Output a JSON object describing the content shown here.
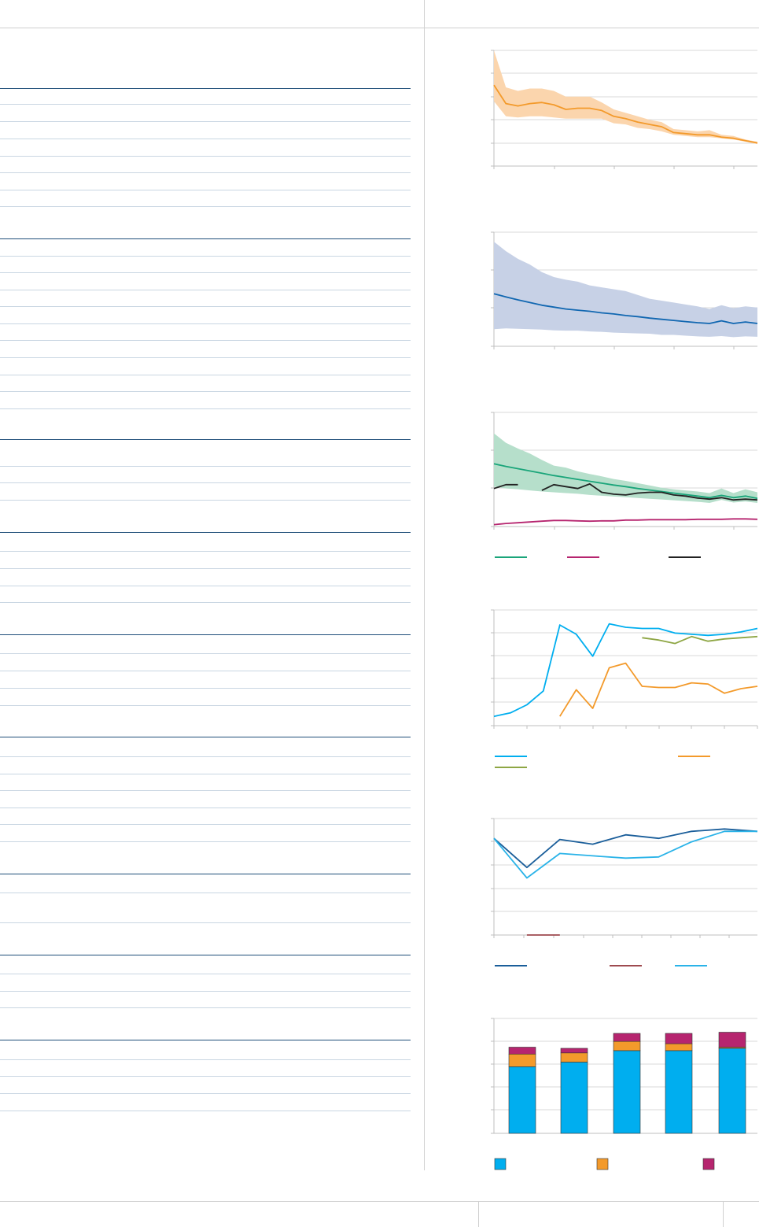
{
  "colors": {
    "header_rule": "#1f4e79",
    "row_rule": "#c9d6e2",
    "orange": "#f39a2b",
    "orange_band": "#fbd5ad",
    "blue": "#1167b1",
    "blue_band": "#c7d1e6",
    "green": "#1aa57a",
    "green_band": "#b6dfcb",
    "magenta": "#b6256f",
    "black": "#222222",
    "cyan": "#00aeef",
    "olive": "#8ea644",
    "darkblue": "#1a5e9a",
    "brown": "#9e4a4f",
    "lightblue": "#2ab3e8"
  },
  "chart_data": [
    {
      "type": "line",
      "title": "",
      "x": [
        0,
        1,
        2,
        3,
        4,
        5,
        6,
        7,
        8,
        9,
        10,
        11,
        12,
        13,
        14,
        15,
        16,
        17,
        18,
        19,
        20,
        21,
        22
      ],
      "ylim": [
        0,
        5
      ],
      "series": [
        {
          "values": [
            3.5,
            2.7,
            2.6,
            2.7,
            2.75,
            2.65,
            2.45,
            2.5,
            2.5,
            2.4,
            2.15,
            2.05,
            1.9,
            1.8,
            1.7,
            1.45,
            1.4,
            1.35,
            1.35,
            1.25,
            1.2,
            1.1,
            1.0
          ],
          "band_low": [
            2.8,
            2.15,
            2.1,
            2.15,
            2.15,
            2.1,
            2.05,
            2.05,
            2.05,
            2.05,
            1.85,
            1.8,
            1.65,
            1.6,
            1.5,
            1.35,
            1.3,
            1.25,
            1.25,
            1.2,
            1.15,
            1.05,
            0.95
          ],
          "band_high": [
            5.0,
            3.4,
            3.25,
            3.35,
            3.35,
            3.25,
            3.0,
            3.0,
            3.0,
            2.75,
            2.45,
            2.3,
            2.15,
            2.0,
            1.9,
            1.6,
            1.55,
            1.5,
            1.55,
            1.35,
            1.3,
            1.15,
            1.05
          ]
        }
      ]
    },
    {
      "type": "line",
      "title": "",
      "x": [
        0,
        1,
        2,
        3,
        4,
        5,
        6,
        7,
        8,
        9,
        10,
        11,
        12,
        13,
        14,
        15,
        16,
        17,
        18,
        19,
        20,
        21,
        22
      ],
      "ylim": [
        0,
        3
      ],
      "series": [
        {
          "values": [
            1.38,
            1.3,
            1.22,
            1.15,
            1.08,
            1.03,
            0.98,
            0.95,
            0.92,
            0.88,
            0.85,
            0.81,
            0.78,
            0.74,
            0.71,
            0.68,
            0.65,
            0.62,
            0.6,
            0.67,
            0.6,
            0.64,
            0.6
          ],
          "band_low": [
            0.45,
            0.47,
            0.46,
            0.45,
            0.44,
            0.42,
            0.41,
            0.41,
            0.39,
            0.38,
            0.36,
            0.35,
            0.34,
            0.33,
            0.3,
            0.3,
            0.28,
            0.26,
            0.25,
            0.27,
            0.24,
            0.26,
            0.25
          ],
          "band_high": [
            2.75,
            2.5,
            2.3,
            2.15,
            1.95,
            1.82,
            1.75,
            1.7,
            1.6,
            1.55,
            1.5,
            1.45,
            1.35,
            1.25,
            1.2,
            1.15,
            1.1,
            1.05,
            0.98,
            1.08,
            1.0,
            1.05,
            1.02
          ]
        }
      ]
    },
    {
      "type": "line",
      "title": "",
      "x": [
        0,
        1,
        2,
        3,
        4,
        5,
        6,
        7,
        8,
        9,
        10,
        11,
        12,
        13,
        14,
        15,
        16,
        17,
        18,
        19,
        20,
        21,
        22
      ],
      "ylim": [
        0,
        3
      ],
      "series": [
        {
          "color_key": "green",
          "values": [
            1.65,
            1.58,
            1.52,
            1.46,
            1.4,
            1.34,
            1.29,
            1.24,
            1.19,
            1.14,
            1.09,
            1.05,
            1.0,
            0.96,
            0.92,
            0.88,
            0.84,
            0.8,
            0.76,
            0.82,
            0.76,
            0.8,
            0.74
          ],
          "band_low": [
            1.05,
            1.0,
            0.98,
            0.95,
            0.92,
            0.9,
            0.88,
            0.86,
            0.83,
            0.81,
            0.79,
            0.77,
            0.75,
            0.73,
            0.71,
            0.69,
            0.67,
            0.65,
            0.62,
            0.7,
            0.63,
            0.66,
            0.62
          ],
          "band_high": [
            2.45,
            2.2,
            2.05,
            1.92,
            1.75,
            1.6,
            1.55,
            1.45,
            1.38,
            1.32,
            1.25,
            1.2,
            1.14,
            1.08,
            1.02,
            0.98,
            0.95,
            0.92,
            0.88,
            1.0,
            0.88,
            0.98,
            0.9
          ]
        },
        {
          "color_key": "magenta",
          "values": [
            0.05,
            0.08,
            0.1,
            0.12,
            0.14,
            0.16,
            0.16,
            0.15,
            0.14,
            0.15,
            0.15,
            0.17,
            0.17,
            0.18,
            0.18,
            0.18,
            0.18,
            0.19,
            0.19,
            0.19,
            0.2,
            0.2,
            0.19
          ]
        },
        {
          "color_key": "black",
          "values": [
            1.0,
            1.1,
            1.1,
            null,
            0.95,
            1.1,
            1.05,
            1.0,
            1.12,
            0.9,
            0.85,
            0.83,
            0.88,
            0.9,
            0.9,
            0.83,
            0.8,
            0.75,
            0.72,
            0.76,
            0.7,
            0.72,
            0.7
          ]
        }
      ]
    },
    {
      "type": "line",
      "title": "",
      "x": [
        0,
        1,
        2,
        3,
        4,
        5,
        6,
        7,
        8,
        9,
        10,
        11,
        12,
        13,
        14,
        15,
        16
      ],
      "ylim": [
        0,
        5
      ],
      "series": [
        {
          "color_key": "cyan",
          "values": [
            0.4,
            0.55,
            0.9,
            1.5,
            4.35,
            3.95,
            3.0,
            4.4,
            4.25,
            4.2,
            4.2,
            4.0,
            3.95,
            3.9,
            3.95,
            4.05,
            4.2
          ]
        },
        {
          "color_key": "orange",
          "values": [
            null,
            null,
            null,
            null,
            0.4,
            1.55,
            0.75,
            2.5,
            2.7,
            1.7,
            1.65,
            1.65,
            1.85,
            1.8,
            1.4,
            1.6,
            1.7
          ]
        },
        {
          "color_key": "olive",
          "values": [
            null,
            null,
            null,
            null,
            null,
            null,
            null,
            null,
            null,
            3.8,
            3.7,
            3.55,
            3.85,
            3.65,
            3.75,
            3.8,
            3.85
          ]
        }
      ]
    },
    {
      "type": "line",
      "title": "",
      "x": [
        0,
        1,
        2,
        3,
        4,
        5,
        6,
        7,
        8
      ],
      "ylim": [
        0,
        5
      ],
      "series": [
        {
          "color_key": "darkblue",
          "values": [
            4.15,
            2.9,
            4.1,
            3.9,
            4.3,
            4.15,
            4.45,
            4.55,
            4.45
          ]
        },
        {
          "color_key": "brown",
          "values": [
            null,
            0.0,
            0.0,
            null,
            null,
            null,
            null,
            null,
            0.0
          ]
        },
        {
          "color_key": "lightblue",
          "values": [
            4.15,
            2.45,
            3.5,
            3.4,
            3.3,
            3.35,
            4.0,
            4.45,
            4.45
          ]
        }
      ]
    },
    {
      "type": "bar",
      "title": "",
      "categories": [
        "",
        "",
        "",
        "",
        ""
      ],
      "ylim": [
        0,
        50
      ],
      "series": [
        {
          "color_key": "cyan",
          "values": [
            29,
            31,
            36,
            36,
            37
          ]
        },
        {
          "color_key": "orange",
          "values": [
            5.5,
            4,
            4,
            3,
            0.5
          ]
        },
        {
          "color_key": "magenta",
          "values": [
            3,
            2,
            3.5,
            4.5,
            6.5
          ]
        }
      ]
    }
  ]
}
